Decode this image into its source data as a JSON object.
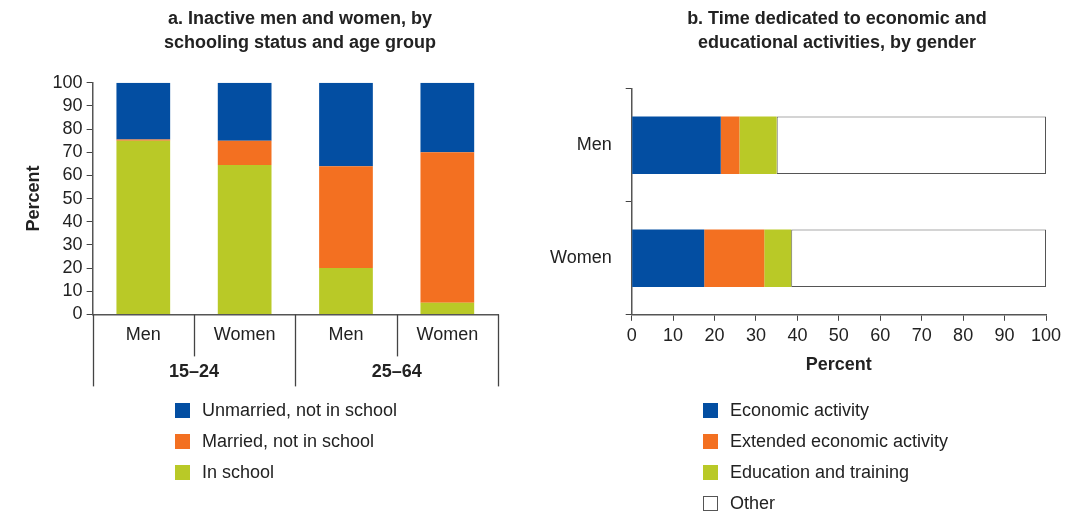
{
  "chart_data": [
    {
      "type": "bar",
      "title": "a. Inactive men and women, by schooling status and age group",
      "ylabel": "Percent",
      "categories": [
        "Men",
        "Women",
        "Men",
        "Women"
      ],
      "annotations": [
        "15–24",
        "25–64"
      ],
      "stacked": true,
      "series": [
        {
          "name": "In school",
          "color": "#b9c927",
          "values": [
            75,
            64.5,
            20,
            5
          ]
        },
        {
          "name": "Married, not in school",
          "color": "#f37021",
          "values": [
            0.5,
            10.5,
            44,
            65
          ]
        },
        {
          "name": "Unmarried, not in school",
          "color": "#034ea2",
          "values": [
            24.5,
            25,
            36,
            30
          ]
        }
      ],
      "ylim": [
        0,
        100
      ],
      "yticks": [
        0,
        10,
        20,
        30,
        40,
        50,
        60,
        70,
        80,
        90,
        100
      ],
      "grid": false,
      "legend": "bottom"
    },
    {
      "type": "bar",
      "orientation": "horizontal",
      "title": "b. Time dedicated to economic and educational activities, by gender",
      "xlabel": "Percent",
      "categories": [
        "Men",
        "Women"
      ],
      "stacked": true,
      "series": [
        {
          "name": "Economic activity",
          "color": "#034ea2",
          "values": [
            21.5,
            17.5
          ]
        },
        {
          "name": "Extended economic activity",
          "color": "#f37021",
          "values": [
            4.5,
            14.5
          ]
        },
        {
          "name": "Education and training",
          "color": "#b9c927",
          "values": [
            9,
            6.5
          ]
        },
        {
          "name": "Other",
          "color": "#ffffff",
          "values": [
            65,
            61.5
          ]
        }
      ],
      "xlim": [
        0,
        100
      ],
      "xticks": [
        0,
        10,
        20,
        30,
        40,
        50,
        60,
        70,
        80,
        90,
        100
      ],
      "grid": false,
      "legend": "bottom"
    }
  ]
}
